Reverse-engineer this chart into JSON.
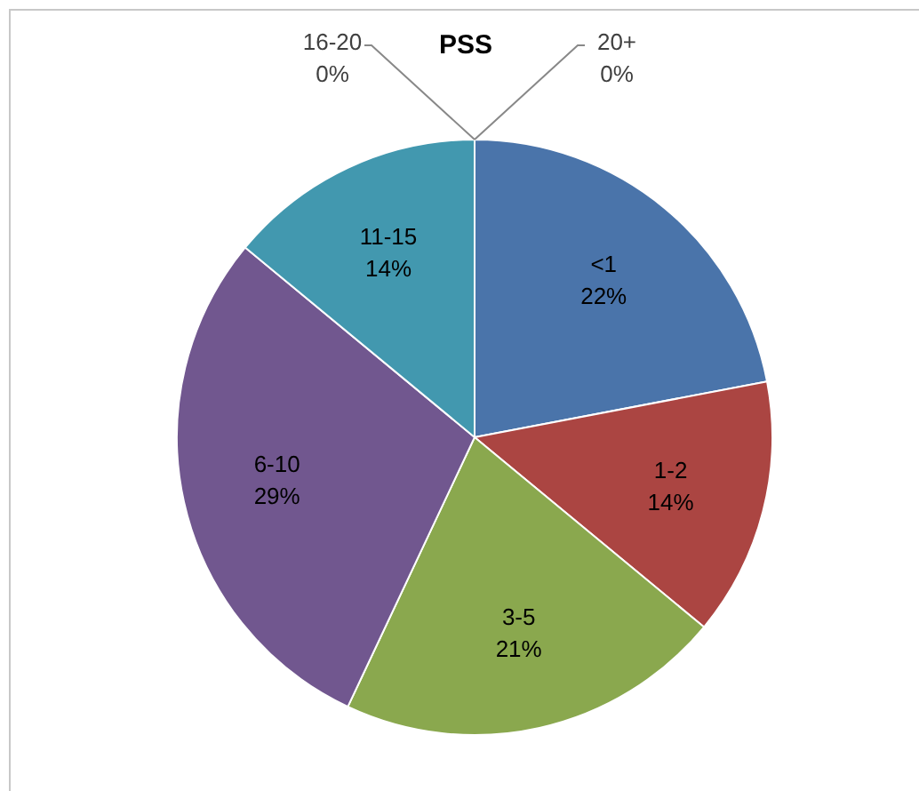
{
  "chart_data": {
    "type": "pie",
    "title": "PSS",
    "categories": [
      "<1",
      "1-2",
      "3-5",
      "6-10",
      "11-15",
      "16-20",
      "20+"
    ],
    "values": [
      22,
      14,
      21,
      29,
      14,
      0,
      0
    ],
    "colors": [
      "#4a74aa",
      "#ab4542",
      "#8aa84e",
      "#71578f",
      "#4298af",
      "#db843d",
      "#93a9cf"
    ],
    "value_labels": [
      "22%",
      "14%",
      "21%",
      "29%",
      "14%",
      "0%",
      "0%"
    ],
    "legend": false
  }
}
